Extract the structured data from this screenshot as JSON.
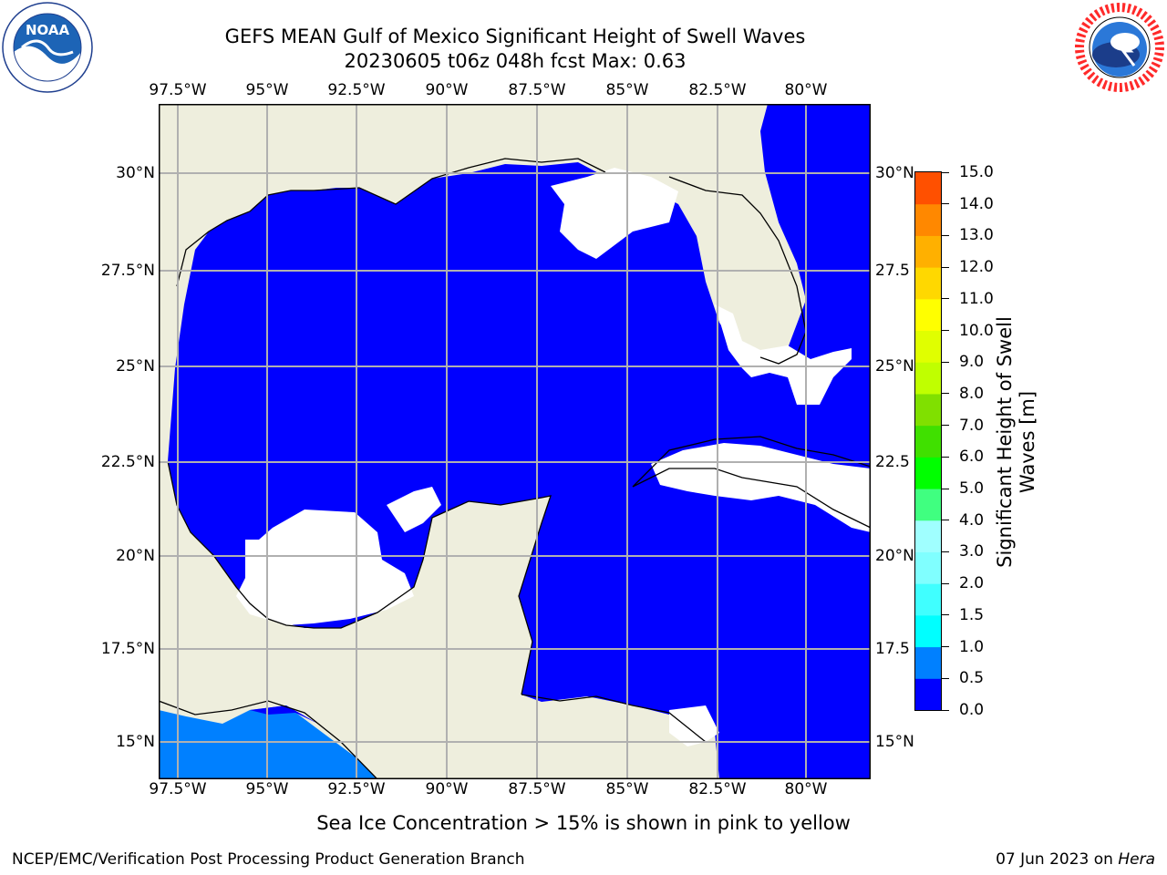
{
  "header": {
    "title_line1": "GEFS MEAN Gulf of Mexico Significant Height of Swell Waves",
    "title_line2": "20230605 t06z 048h fcst   Max: 0.63"
  },
  "logos": {
    "left": {
      "name": "noaa-logo",
      "text": "NOAA",
      "ring_text": "NATIONAL OCEANIC AND ATMOSPHERIC ADMINISTRATION · U.S. DEPARTMENT OF COMMERCE"
    },
    "right": {
      "name": "national-weather-service-logo",
      "ring_text": "NATIONAL WEATHER SERVICE"
    }
  },
  "map": {
    "lon_labels": [
      "97.5°W",
      "95°W",
      "92.5°W",
      "90°W",
      "87.5°W",
      "85°W",
      "82.5°W",
      "80°W"
    ],
    "lat_labels_left": [
      "30°N",
      "27.5°N",
      "25°N",
      "22.5°N",
      "20°N",
      "17.5°N",
      "15°N"
    ],
    "lat_labels_right": [
      "30°N",
      "27.5",
      "25°N",
      "22.5",
      "20°N",
      "17.5",
      "15°N"
    ],
    "colors": {
      "land": "#EEEEDD",
      "no_data": "#FFFFFF",
      "grid": "#B0B0B0"
    },
    "legend_text": "Sea Ice Concentration > 15% is shown in pink to yellow"
  },
  "colorbar": {
    "label": "Significant Height of Swell Waves [m]",
    "ticks": [
      "15.0",
      "14.0",
      "13.0",
      "12.0",
      "11.0",
      "10.0",
      "9.0",
      "8.0",
      "7.0",
      "6.0",
      "5.0",
      "4.0",
      "3.0",
      "2.0",
      "1.5",
      "1.0",
      "0.5",
      "0.0"
    ],
    "bin_colors_bottom_to_top": [
      "#0000FF",
      "#0080FF",
      "#00FFFF",
      "#40FFFF",
      "#80FFFF",
      "#A0FFFF",
      "#40FF80",
      "#00FF00",
      "#40E000",
      "#80E000",
      "#C0FF00",
      "#E0FF00",
      "#FFFF00",
      "#FFD800",
      "#FFB000",
      "#FF8800",
      "#FF5000",
      "#FF2000",
      "#FF0000"
    ]
  },
  "footer": {
    "left": "NCEP/EMC/Verification Post Processing Product Generation Branch",
    "right_date": "07 Jun 2023 on ",
    "right_host": "Hera"
  }
}
